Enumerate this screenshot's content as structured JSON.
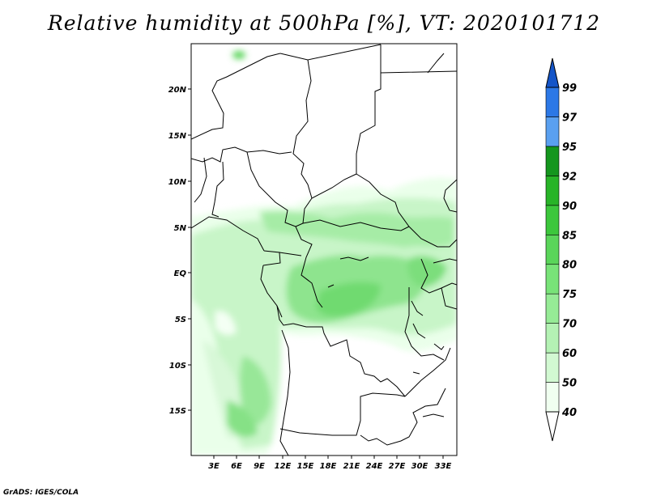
{
  "title": "Relative humidity at 500hPa [%], VT: 2020101712",
  "credit": "GrADS: IGES/COLA",
  "latitude_labels": [
    "20N",
    "15N",
    "10N",
    "5N",
    "EQ",
    "5S",
    "10S",
    "15S"
  ],
  "longitude_labels": [
    "3E",
    "6E",
    "9E",
    "12E",
    "15E",
    "18E",
    "21E",
    "24E",
    "27E",
    "30E",
    "33E"
  ],
  "colorbar": {
    "levels": [
      "40",
      "50",
      "60",
      "70",
      "75",
      "80",
      "85",
      "90",
      "92",
      "95",
      "97",
      "99"
    ],
    "colors": [
      "#f0fff0",
      "#d2f9d2",
      "#b4f2b4",
      "#96eb96",
      "#78e378",
      "#5ad55a",
      "#3cc73c",
      "#28b428",
      "#14961e",
      "#5aa0f0",
      "#2c78e6",
      "#1455c8"
    ]
  }
}
